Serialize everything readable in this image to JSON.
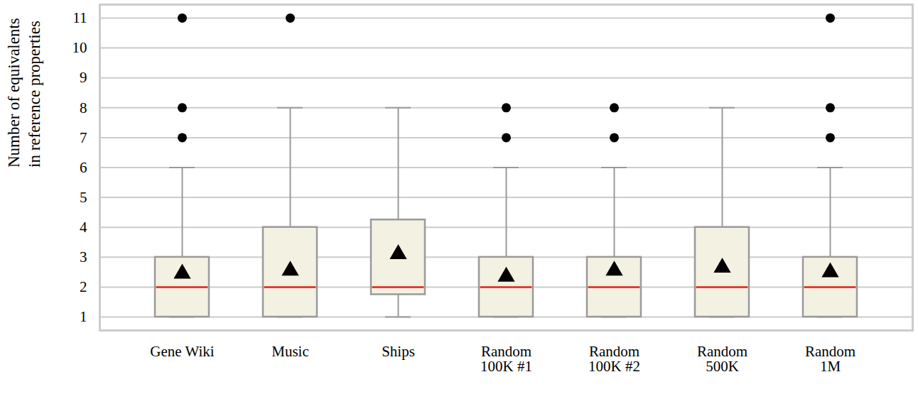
{
  "chart_data": {
    "type": "box",
    "ylabel": "Number of equivalents\nin reference properties",
    "categories": [
      "Gene Wiki",
      "Music",
      "Ships",
      "Random\n100K #1",
      "Random\n100K #2",
      "Random\n500K",
      "Random\n1M"
    ],
    "boxes": [
      {
        "whislo": 1,
        "q1": 1,
        "med": 2,
        "q3": 3,
        "whishi": 6,
        "mean": 2.45,
        "fliers": [
          7,
          8,
          11
        ]
      },
      {
        "whislo": 1,
        "q1": 1,
        "med": 2,
        "q3": 4,
        "whishi": 8,
        "mean": 2.55,
        "fliers": [
          11
        ]
      },
      {
        "whislo": 1,
        "q1": 1.75,
        "med": 2,
        "q3": 4.25,
        "whishi": 8,
        "mean": 3.1,
        "fliers": []
      },
      {
        "whislo": 1,
        "q1": 1,
        "med": 2,
        "q3": 3,
        "whishi": 6,
        "mean": 2.35,
        "fliers": [
          7,
          8
        ]
      },
      {
        "whislo": 1,
        "q1": 1,
        "med": 2,
        "q3": 3,
        "whishi": 6,
        "mean": 2.55,
        "fliers": [
          7,
          8
        ]
      },
      {
        "whislo": 1,
        "q1": 1,
        "med": 2,
        "q3": 4,
        "whishi": 8,
        "mean": 2.65,
        "fliers": []
      },
      {
        "whislo": 1,
        "q1": 1,
        "med": 2,
        "q3": 3,
        "whishi": 6,
        "mean": 2.5,
        "fliers": [
          7,
          8,
          11
        ]
      }
    ],
    "color": "#f3f1e2",
    "marker": "triangle",
    "ylim": [
      0.55,
      11.45
    ],
    "yticks": [
      1,
      2,
      3,
      4,
      5,
      6,
      7,
      8,
      9,
      10,
      11
    ],
    "grid": true
  }
}
